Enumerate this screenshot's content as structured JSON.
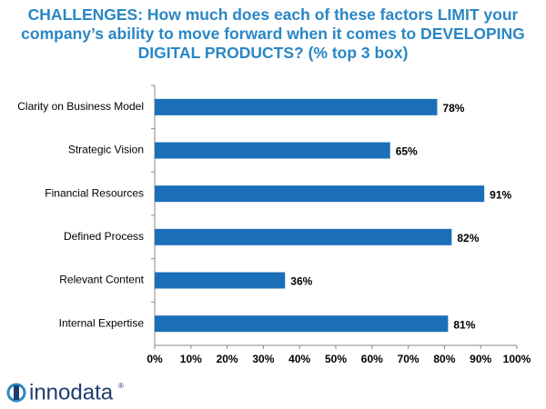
{
  "chart_data": {
    "type": "barh",
    "title": "CHALLENGES:  How much does each of these factors LIMIT your company’s ability to move forward when it comes to DEVELOPING DIGITAL PRODUCTS? (% top 3 box)",
    "categories": [
      "Clarity on Business Model",
      "Strategic Vision",
      "Financial Resources",
      "Defined Process",
      "Relevant Content",
      "Internal Expertise"
    ],
    "values": [
      78,
      65,
      91,
      82,
      36,
      81
    ],
    "value_labels": [
      "78%",
      "65%",
      "91%",
      "82%",
      "36%",
      "81%"
    ],
    "color": "#1b6fb8",
    "xlim": [
      0,
      100
    ],
    "xticks": [
      {
        "value": 0,
        "label": "0%"
      },
      {
        "value": 10,
        "label": "10%"
      },
      {
        "value": 20,
        "label": "20%"
      },
      {
        "value": 30,
        "label": "30%"
      },
      {
        "value": 40,
        "label": "40%"
      },
      {
        "value": 50,
        "label": "50%"
      },
      {
        "value": 60,
        "label": "60%"
      },
      {
        "value": 70,
        "label": "70%"
      },
      {
        "value": 80,
        "label": "80%"
      },
      {
        "value": 90,
        "label": "90%"
      },
      {
        "value": 100,
        "label": "100%"
      }
    ],
    "grid": false
  },
  "logo": {
    "text": "innodata",
    "mark": "®"
  }
}
